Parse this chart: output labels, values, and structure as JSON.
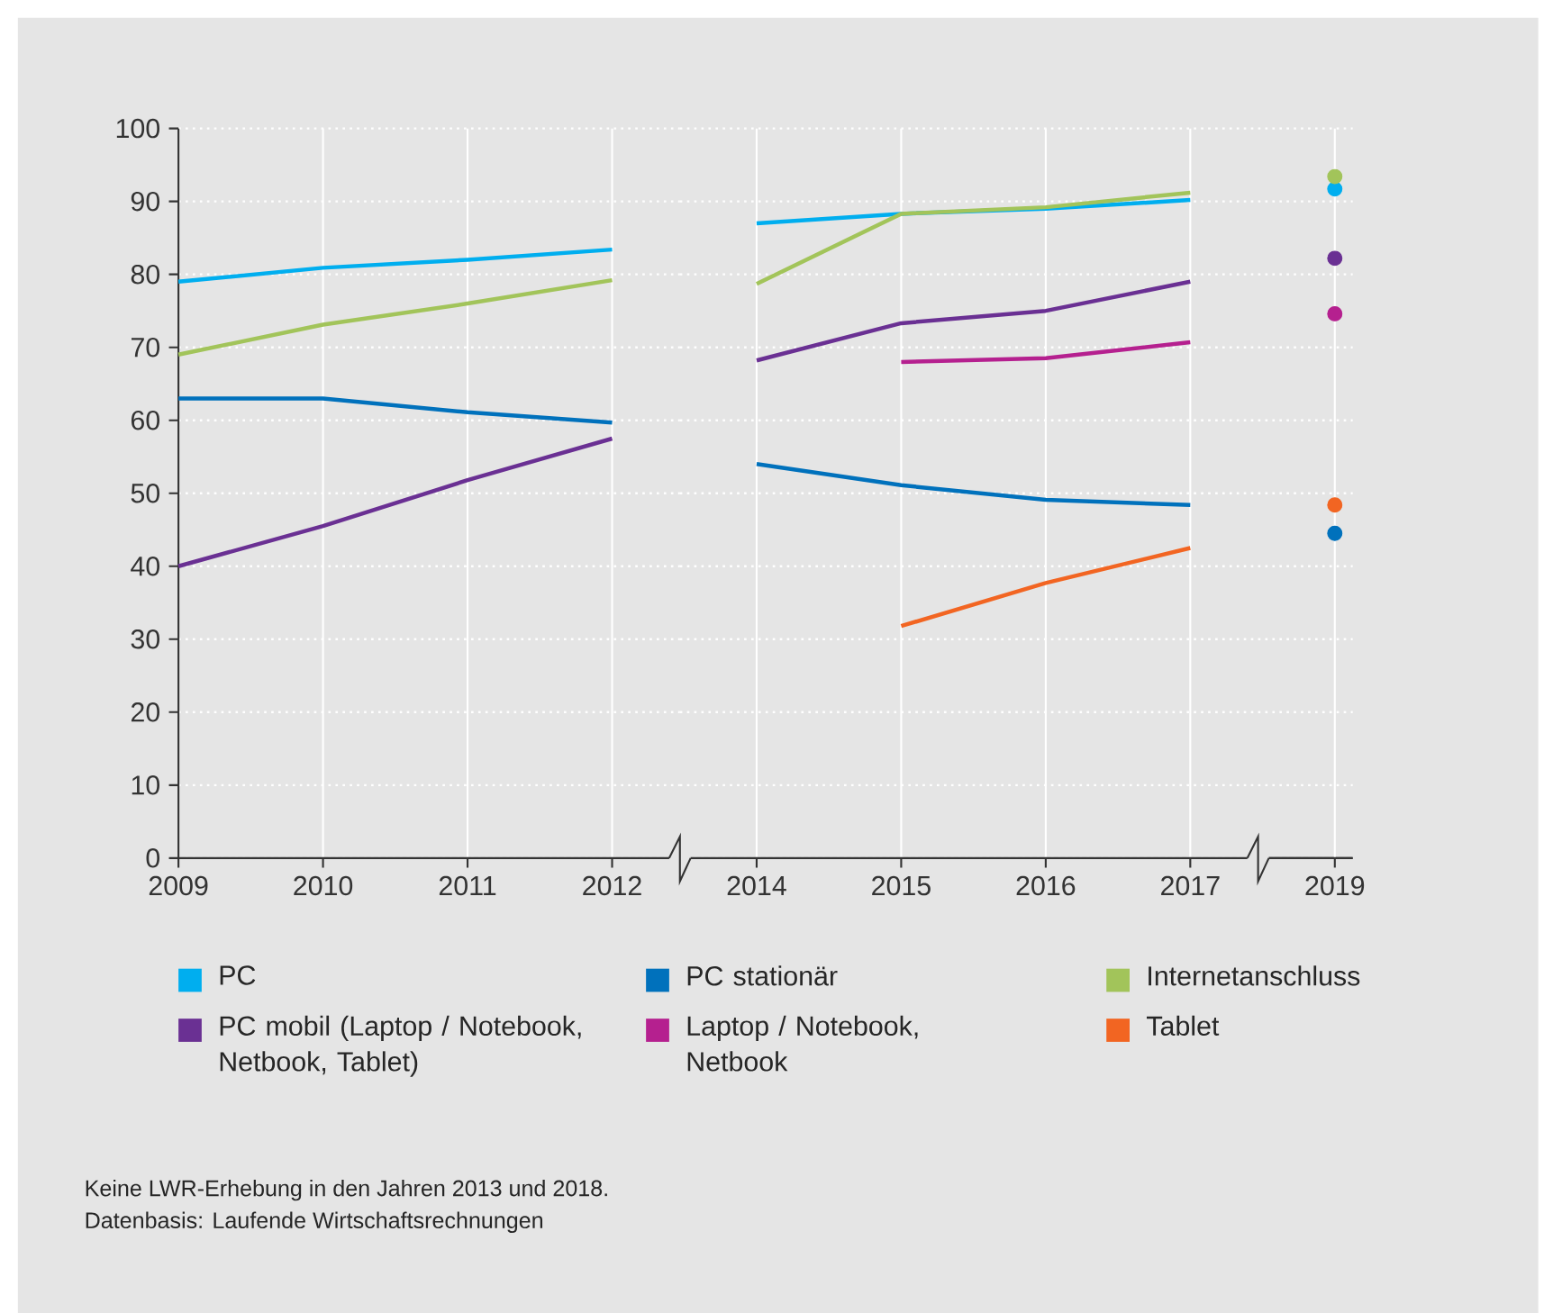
{
  "chart_data": [
    {
      "type": "line",
      "categories": [
        "2009",
        "2010",
        "2011",
        "2012"
      ],
      "ylim": [
        0,
        100
      ],
      "yticks": [
        0,
        10,
        20,
        30,
        40,
        50,
        60,
        70,
        80,
        90,
        100
      ],
      "grid": true,
      "legend": "bottom",
      "annotations": [
        "Keine LWR-Erhebung in den Jahren 2013 und 2018.",
        "Datenbasis: Laufende Wirtschaftsrechnungen"
      ],
      "series": [
        {
          "name": "PC",
          "color": "#00aeef",
          "values": [
            79,
            80.9,
            82,
            83.4
          ]
        },
        {
          "name": "PC stationär",
          "color": "#0071bc",
          "values": [
            63,
            63,
            61.1,
            59.7
          ]
        },
        {
          "name": "Internetanschluss",
          "color": "#a2c45a",
          "values": [
            69,
            73.1,
            76,
            79.2
          ]
        },
        {
          "name": "PC mobil (Laptop / Notebook, Netbook, Tablet)",
          "color": "#6a3093",
          "values": [
            40,
            45.5,
            51.8,
            57.5
          ]
        }
      ]
    },
    {
      "type": "line",
      "categories": [
        "2014",
        "2015",
        "2016",
        "2017"
      ],
      "ylim": [
        0,
        100
      ],
      "yticks": [
        0,
        10,
        20,
        30,
        40,
        50,
        60,
        70,
        80,
        90,
        100
      ],
      "grid": true,
      "tick_labels": "x",
      "legend": "bottom",
      "series": [
        {
          "color": "#00aeef",
          "values": [
            87,
            88.3,
            89,
            90.2
          ]
        },
        {
          "color": "#0071bc",
          "values": [
            54,
            51.1,
            49.1,
            48.4
          ]
        },
        {
          "color": "#a2c45a",
          "values": [
            78.7,
            88.3,
            89.2,
            91.2
          ]
        },
        {
          "color": "#6a3093",
          "values": [
            68.2,
            73.3,
            75,
            79
          ]
        },
        {
          "name": "Laptop / Notebook, Netbook",
          "color": "#b5208f",
          "values": [
            null,
            68,
            68.5,
            70.7
          ]
        },
        {
          "name": "Tablet",
          "color": "#f26522",
          "values": [
            null,
            31.8,
            37.7,
            42.5
          ]
        }
      ]
    },
    {
      "type": "scatter",
      "categories": [
        "2019"
      ],
      "ylim": [
        0,
        100
      ],
      "yticks": [
        0,
        10,
        20,
        30,
        40,
        50,
        60,
        70,
        80,
        90,
        100
      ],
      "grid": "x",
      "tick_labels": "x",
      "series": [
        {
          "color": "#00aeef",
          "values": [
            91.7
          ]
        },
        {
          "color": "#0071bc",
          "values": [
            44.5
          ]
        },
        {
          "color": "#a2c45a",
          "values": [
            93.4
          ]
        },
        {
          "color": "#6a3093",
          "values": [
            82.2
          ]
        },
        {
          "color": "#b5208f",
          "values": [
            74.6
          ]
        },
        {
          "color": "#f26522",
          "values": [
            48.4
          ]
        }
      ]
    }
  ]
}
